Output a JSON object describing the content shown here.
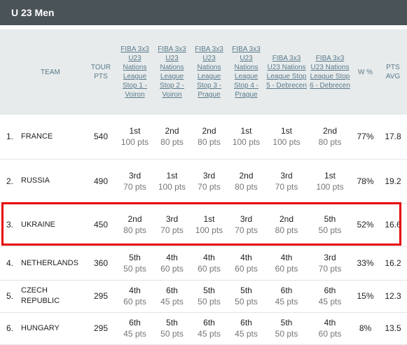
{
  "header": {
    "title": "U 23 Men"
  },
  "columns": {
    "team": "TEAM",
    "tour_pts": "TOUR PTS",
    "stops": [
      "FIBA 3x3 U23 Nations League Stop 1 - Voiron",
      "FIBA 3x3 U23 Nations League Stop 2 - Voiron",
      "FIBA 3x3 U23 Nations League Stop 3 - Prague",
      "FIBA 3x3 U23 Nations League Stop 4 - Prague",
      "FIBA 3x3 U23 Nations League Stop 5 - Debrecen",
      "FIBA 3x3 U23 Nations League Stop 6 - Debrecen"
    ],
    "win_pct": "W %",
    "pts_avg": "PTS AVG"
  },
  "rows": [
    {
      "rank": "1.",
      "team": "FRANCE",
      "tour_pts": "540",
      "stops": [
        [
          "1st",
          "100 pts"
        ],
        [
          "2nd",
          "80 pts"
        ],
        [
          "2nd",
          "80 pts"
        ],
        [
          "1st",
          "100 pts"
        ],
        [
          "1st",
          "100 pts"
        ],
        [
          "2nd",
          "80 pts"
        ]
      ],
      "win_pct": "77%",
      "pts_avg": "17.8"
    },
    {
      "rank": "2.",
      "team": "RUSSIA",
      "tour_pts": "490",
      "stops": [
        [
          "3rd",
          "70 pts"
        ],
        [
          "1st",
          "100 pts"
        ],
        [
          "3rd",
          "70 pts"
        ],
        [
          "2nd",
          "80 pts"
        ],
        [
          "3rd",
          "70 pts"
        ],
        [
          "1st",
          "100 pts"
        ]
      ],
      "win_pct": "78%",
      "pts_avg": "19.2"
    },
    {
      "rank": "3.",
      "team": "UKRAINE",
      "tour_pts": "450",
      "stops": [
        [
          "2nd",
          "80 pts"
        ],
        [
          "3rd",
          "70 pts"
        ],
        [
          "1st",
          "100 pts"
        ],
        [
          "3rd",
          "70 pts"
        ],
        [
          "2nd",
          "80 pts"
        ],
        [
          "5th",
          "50 pts"
        ]
      ],
      "win_pct": "52%",
      "pts_avg": "16.6"
    },
    {
      "rank": "4.",
      "team": "NETHERLANDS",
      "tour_pts": "360",
      "stops": [
        [
          "5th",
          "50 pts"
        ],
        [
          "4th",
          "60 pts"
        ],
        [
          "4th",
          "60 pts"
        ],
        [
          "4th",
          "60 pts"
        ],
        [
          "4th",
          "60 pts"
        ],
        [
          "3rd",
          "70 pts"
        ]
      ],
      "win_pct": "33%",
      "pts_avg": "16.2"
    },
    {
      "rank": "5.",
      "team": "CZECH REPUBLIC",
      "tour_pts": "295",
      "stops": [
        [
          "4th",
          "60 pts"
        ],
        [
          "6th",
          "45 pts"
        ],
        [
          "5th",
          "50 pts"
        ],
        [
          "5th",
          "50 pts"
        ],
        [
          "6th",
          "45 pts"
        ],
        [
          "6th",
          "45 pts"
        ]
      ],
      "win_pct": "15%",
      "pts_avg": "12.3"
    },
    {
      "rank": "6.",
      "team": "HUNGARY",
      "tour_pts": "295",
      "stops": [
        [
          "6th",
          "45 pts"
        ],
        [
          "5th",
          "50 pts"
        ],
        [
          "6th",
          "45 pts"
        ],
        [
          "6th",
          "45 pts"
        ],
        [
          "5th",
          "50 pts"
        ],
        [
          "4th",
          "60 pts"
        ]
      ],
      "win_pct": "8%",
      "pts_avg": "13.5"
    }
  ],
  "highlight": {
    "color": "#e60000",
    "row_team": "UKRAINE"
  }
}
